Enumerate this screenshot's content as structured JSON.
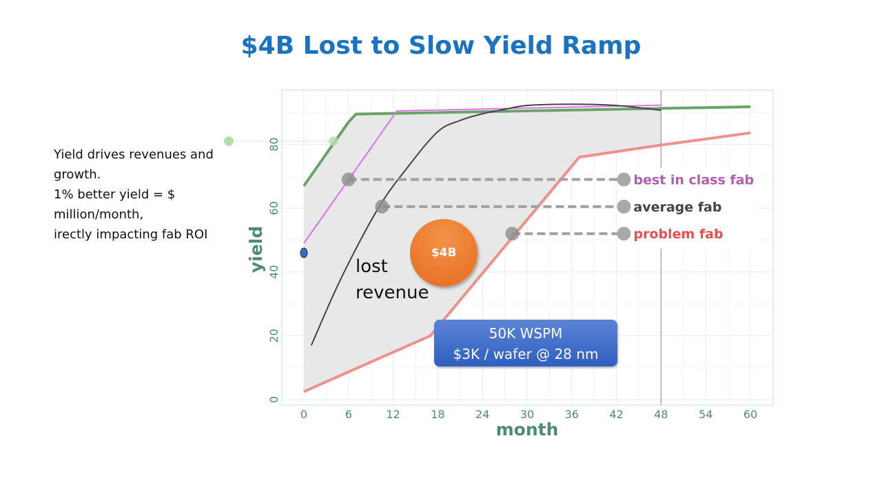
{
  "title": "$4B Lost to Slow Yield Ramp",
  "side_text": [
    "Yield drives revenues and",
    "growth.",
    "1% better yield = $",
    "million/month,",
    "irectly impacting fab ROI"
  ],
  "annotations": {
    "bubble": "$4B",
    "lost_revenue": [
      "lost",
      "revenue"
    ],
    "callout": [
      "50K WSPM",
      "$3K / wafer @ 28 nm"
    ]
  },
  "chart_data": {
    "type": "line",
    "xlabel": "month",
    "ylabel": "yield",
    "xlim": [
      -5,
      63
    ],
    "ylim": [
      -2,
      97
    ],
    "x_ticks": [
      "0",
      "6",
      "12",
      "18",
      "24",
      "30",
      "36",
      "42",
      "48",
      "54",
      "60"
    ],
    "y_ticks": [
      "0",
      "20",
      "40",
      "60",
      "80"
    ],
    "grid": true,
    "vertical_marker_x": 48,
    "series": [
      {
        "color": "#6aa36a",
        "points": [
          [
            0,
            67
          ],
          [
            6,
            87
          ],
          [
            7,
            89.5
          ],
          [
            60,
            91.8
          ]
        ]
      },
      {
        "color": "#e070e8",
        "points": [
          [
            0,
            49
          ],
          [
            12.5,
            90.5
          ],
          [
            48,
            92.3
          ]
        ]
      },
      {
        "color": "#444444",
        "points": [
          [
            1,
            17
          ],
          [
            5,
            38
          ],
          [
            10,
            60
          ],
          [
            14,
            73
          ],
          [
            18,
            84
          ],
          [
            21,
            87.5
          ],
          [
            24,
            89.6
          ],
          [
            27,
            91
          ],
          [
            30,
            92.2
          ],
          [
            36,
            92.6
          ],
          [
            42,
            92.2
          ],
          [
            48,
            90.7
          ]
        ]
      },
      {
        "color": "#f0908c",
        "points": [
          [
            0,
            2.5
          ],
          [
            17,
            20
          ],
          [
            37,
            76
          ],
          [
            48,
            79.8
          ],
          [
            60,
            83.6
          ]
        ]
      }
    ],
    "shaded_region": {
      "x_range": [
        0,
        48
      ],
      "color": "#e8e8e8"
    },
    "legend_markers": [
      {
        "label": "best in class fab",
        "color": "#b05fb0",
        "y": 69,
        "x_from": 6,
        "x_to": 43
      },
      {
        "label": "average fab",
        "color": "#444444",
        "y": 60.5,
        "x_from": 10.5,
        "x_to": 43
      },
      {
        "label": "problem fab",
        "color": "#ee4d4d",
        "y": 52,
        "x_from": 28,
        "x_to": 43
      }
    ],
    "extra_points": [
      {
        "x": 0,
        "y": 46,
        "color": "#3a6bc4"
      },
      {
        "x": 4,
        "y": 81,
        "color": "#b9dcae"
      }
    ]
  }
}
